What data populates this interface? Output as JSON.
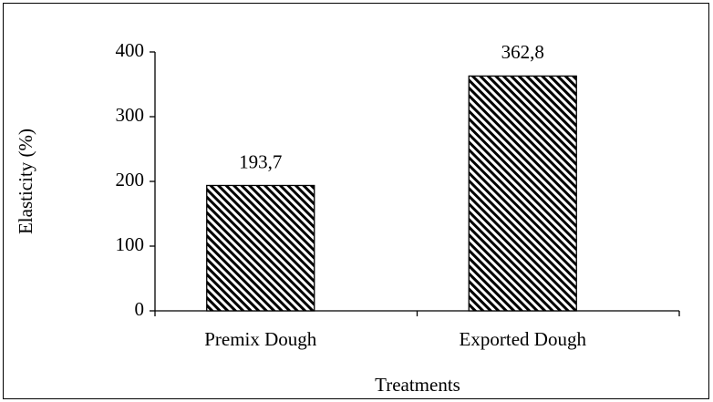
{
  "chart_data": {
    "type": "bar",
    "categories": [
      "Premix Dough",
      "Exported Dough"
    ],
    "values": [
      193.7,
      362.8
    ],
    "value_labels": [
      "193,7",
      "362,8"
    ],
    "ylabel": "Elasticity (%)",
    "xlabel": "Treatments",
    "color": "#000000",
    "ylim": [
      0,
      400
    ],
    "yticks": [
      0,
      100,
      200,
      300,
      400
    ],
    "grid": false
  }
}
